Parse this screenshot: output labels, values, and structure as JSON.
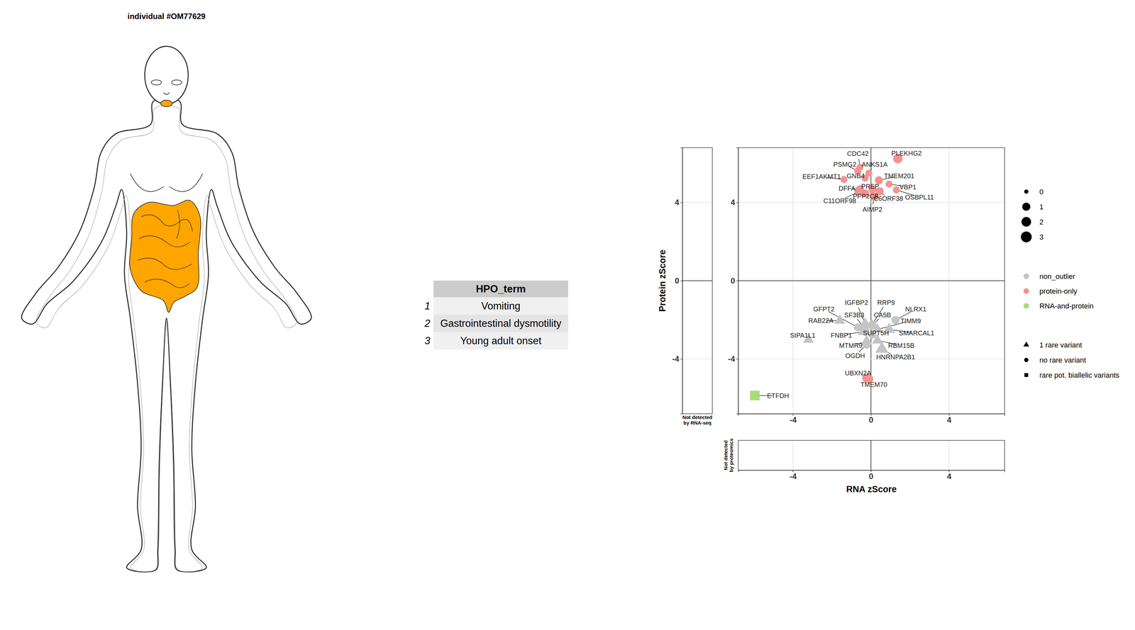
{
  "header": {
    "title": "individual #OM77629"
  },
  "table": {
    "columns": [
      "HPO_term"
    ],
    "index": [
      "1",
      "2",
      "3"
    ],
    "rows": [
      [
        "Vomiting"
      ],
      [
        "Gastrointestinal dysmotility"
      ],
      [
        "Young adult onset"
      ]
    ]
  },
  "chart_data": {
    "type": "scatter",
    "xlabel": "RNA zScore",
    "ylabel": "Protein zScore",
    "xlim": [
      -6.8,
      6.85
    ],
    "ylim": [
      -6.8,
      6.8
    ],
    "xticks": [
      -4,
      0,
      4
    ],
    "yticks": [
      -4,
      0,
      4
    ],
    "grid": true,
    "side_panels": [
      {
        "label": "Not detected\nby RNA-seq"
      },
      {
        "label": "Not detected\nby proteomics"
      }
    ],
    "size_legend": [
      0,
      1,
      2,
      3
    ],
    "color_legend": [
      {
        "label": "non_outlier",
        "color": "#c4c4c4"
      },
      {
        "label": "protein-only",
        "color": "#f4928d"
      },
      {
        "label": "RNA-and-protein",
        "color": "#a8dc78"
      }
    ],
    "shape_legend": [
      {
        "label": "1 rare variant",
        "marker": "triangle"
      },
      {
        "label": "no rare variant",
        "marker": "circle"
      },
      {
        "label": "rare pot. biallelic variants",
        "marker": "square"
      }
    ],
    "points": [
      {
        "label": "PLEKHG2",
        "x": 1.38,
        "y": 6.25,
        "size": 2,
        "color": "#f4928d",
        "marker": "circle"
      },
      {
        "label": "CDC42",
        "x": -0.56,
        "y": 5.8,
        "size": 0.5,
        "color": "#f4928d",
        "marker": "circle"
      },
      {
        "label": "PSMG2",
        "x": -0.67,
        "y": 5.61,
        "size": 0.5,
        "color": "#f4928d",
        "marker": "circle"
      },
      {
        "label": "ANKS1A",
        "x": -0.11,
        "y": 5.5,
        "size": 0.5,
        "color": "#f4928d",
        "marker": "circle"
      },
      {
        "label": "EEF1AKMT1",
        "x": -1.38,
        "y": 5.17,
        "size": 0.5,
        "color": "#f4928d",
        "marker": "circle"
      },
      {
        "label": "GNB4",
        "x": -0.3,
        "y": 5.24,
        "size": 0.5,
        "color": "#f4928d",
        "marker": "circle"
      },
      {
        "label": "TMEM201",
        "x": 0.41,
        "y": 5.13,
        "size": 1,
        "color": "#f4928d",
        "marker": "circle"
      },
      {
        "label": "DFFA",
        "x": -0.56,
        "y": 4.68,
        "size": 1,
        "color": "#f4928d",
        "marker": "circle"
      },
      {
        "label": "PREP",
        "x": 0.07,
        "y": 4.68,
        "size": 1,
        "color": "#f4928d",
        "marker": "circle"
      },
      {
        "label": "VBP1",
        "x": 0.93,
        "y": 4.94,
        "size": 0.5,
        "color": "#f4928d",
        "marker": "circle"
      },
      {
        "label": "PPP2CB",
        "x": -0.3,
        "y": 4.46,
        "size": 1,
        "color": "#f4928d",
        "marker": "circle"
      },
      {
        "label": "C6ORF38",
        "x": 0.45,
        "y": 4.57,
        "size": 1,
        "color": "#f4928d",
        "marker": "circle"
      },
      {
        "label": "C11ORF98",
        "x": -0.67,
        "y": 4.53,
        "size": 0.5,
        "color": "#f4928d",
        "marker": "circle"
      },
      {
        "label": "OSBPL11",
        "x": 1.3,
        "y": 4.64,
        "size": 0.5,
        "color": "#f4928d",
        "marker": "circle"
      },
      {
        "label": "AIMP2",
        "x": 0.15,
        "y": 4.31,
        "size": 1,
        "color": "#f4928d",
        "marker": "circle"
      },
      {
        "label": "UBXN2A",
        "x": -0.22,
        "y": -4.98,
        "size": 1.5,
        "color": "#f4928d",
        "marker": "circle"
      },
      {
        "label": "TMEM70",
        "x": -0.11,
        "y": -5.02,
        "size": 1.5,
        "color": "#f4928d",
        "marker": "circle"
      },
      {
        "label": "IGFBP2",
        "x": -0.3,
        "y": -2.19,
        "size": 1,
        "color": "#c4c4c4",
        "marker": "triangle"
      },
      {
        "label": "RRP9",
        "x": 0.07,
        "y": -2.23,
        "size": 1,
        "color": "#c4c4c4",
        "marker": "circle"
      },
      {
        "label": "NLRX1",
        "x": 1.26,
        "y": -2.01,
        "size": 1,
        "color": "#c4c4c4",
        "marker": "circle"
      },
      {
        "label": "GFPT2",
        "x": -0.67,
        "y": -2.38,
        "size": 1,
        "color": "#c4c4c4",
        "marker": "circle"
      },
      {
        "label": "SF3B3",
        "x": -0.3,
        "y": -2.49,
        "size": 1,
        "color": "#c4c4c4",
        "marker": "circle"
      },
      {
        "label": "CA5B",
        "x": 0.07,
        "y": -2.3,
        "size": 1,
        "color": "#c4c4c4",
        "marker": "circle"
      },
      {
        "label": "RAB22A",
        "x": -1.6,
        "y": -2.04,
        "size": 1,
        "color": "#c4c4c4",
        "marker": "triangle"
      },
      {
        "label": "TIMM9",
        "x": 0.33,
        "y": -2.49,
        "size": 1,
        "color": "#c4c4c4",
        "marker": "triangle"
      },
      {
        "label": "FNBP1",
        "x": -0.37,
        "y": -2.6,
        "size": 1.5,
        "color": "#c4c4c4",
        "marker": "triangle"
      },
      {
        "label": "SUPT5H",
        "x": 0.07,
        "y": -2.75,
        "size": 1,
        "color": "#c4c4c4",
        "marker": "circle"
      },
      {
        "label": "SMARCAL1",
        "x": 0.93,
        "y": -2.49,
        "size": 1.5,
        "color": "#c4c4c4",
        "marker": "triangle"
      },
      {
        "label": "SIPA1L1",
        "x": -3.2,
        "y": -3.01,
        "size": 1,
        "color": "#c4c4c4",
        "marker": "triangle"
      },
      {
        "label": "MTMR9",
        "x": -0.22,
        "y": -3.12,
        "size": 1.5,
        "color": "#c4c4c4",
        "marker": "triangle"
      },
      {
        "label": "RBM15B",
        "x": 0.33,
        "y": -3.05,
        "size": 1,
        "color": "#c4c4c4",
        "marker": "triangle"
      },
      {
        "label": "OGDH",
        "x": -0.22,
        "y": -3.27,
        "size": 1,
        "color": "#c4c4c4",
        "marker": "circle"
      },
      {
        "label": "HNRNPA2B1",
        "x": 0.56,
        "y": -3.49,
        "size": 2,
        "color": "#c4c4c4",
        "marker": "triangle"
      },
      {
        "label": "ETFDH",
        "x": -5.95,
        "y": -5.87,
        "size": 3,
        "color": "#a8dc78",
        "marker": "square"
      }
    ]
  }
}
